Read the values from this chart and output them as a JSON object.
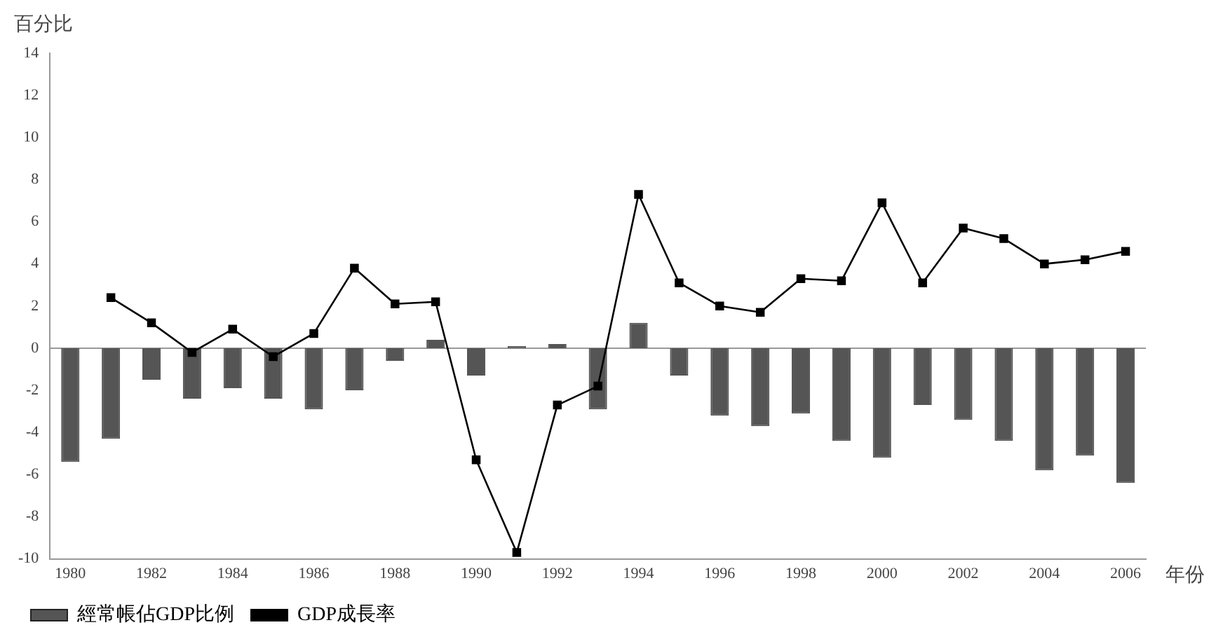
{
  "chart_data": {
    "type": "bar",
    "ylabel": "百分比",
    "xlabel": "年份",
    "categories": [
      "1980",
      null,
      "1982",
      null,
      "1984",
      null,
      "1986",
      null,
      "1988",
      null,
      "1990",
      null,
      "1992",
      null,
      "1994",
      null,
      "1996",
      null,
      "1998",
      null,
      "2000",
      null,
      "2002",
      null,
      "2004",
      null,
      "2006"
    ],
    "series": [
      {
        "name": "經常帳佔GDP比例",
        "color": "#555555",
        "values": [
          -5.4,
          -4.3,
          -1.5,
          -2.4,
          -1.9,
          -2.4,
          -2.9,
          -2.0,
          -0.6,
          0.4,
          -1.3,
          0.1,
          0.2,
          -2.9,
          1.2,
          -1.3,
          -3.2,
          -3.7,
          -3.1,
          -4.4,
          -5.2,
          -2.7,
          -3.4,
          -4.4,
          -5.8,
          -5.1,
          -6.4
        ]
      },
      {
        "name": "GDP成長率",
        "type": "line",
        "color": "#000000",
        "values": [
          null,
          2.4,
          1.2,
          -0.2,
          0.9,
          -0.4,
          0.7,
          3.8,
          2.1,
          2.2,
          -5.3,
          -9.7,
          -2.7,
          -1.8,
          7.3,
          3.1,
          2.0,
          1.7,
          3.3,
          3.2,
          6.9,
          3.1,
          5.7,
          5.2,
          4.0,
          4.2,
          4.6
        ]
      }
    ],
    "ylim": [
      -10,
      14
    ],
    "yticks": [
      -10,
      -8,
      -6,
      -4,
      -2,
      0,
      2,
      4,
      6,
      8,
      10,
      12,
      14
    ],
    "ref_lines": [
      {
        "axis": "y",
        "value": 0,
        "color": "#999999"
      }
    ],
    "grid": false,
    "legend": "bottom",
    "marker": "square",
    "line_style": "solid"
  }
}
